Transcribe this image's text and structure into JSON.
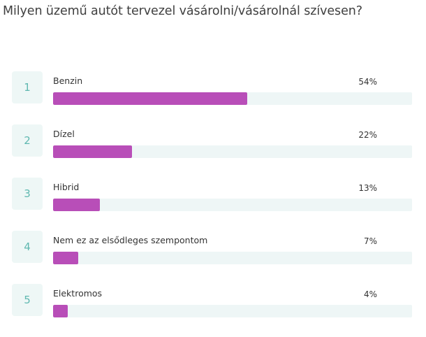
{
  "survey": {
    "question": "Milyen üzemű autót tervezel vásárolni/vásárolnál szívesen?"
  },
  "colors": {
    "bar": "#b84eb8",
    "track": "#eef6f6",
    "rank_bg": "#eef7f6",
    "rank_text": "#5fb8b0"
  },
  "chart_data": {
    "type": "bar",
    "orientation": "horizontal",
    "title": "Milyen üzemű autót tervezel vásárolni/vásárolnál szívesen?",
    "categories": [
      "Benzin",
      "Dízel",
      "Hibrid",
      "Nem ez az elsődleges szempontom",
      "Elektromos"
    ],
    "ranks": [
      "1",
      "2",
      "3",
      "4",
      "5"
    ],
    "values": [
      54,
      22,
      13,
      7,
      4
    ],
    "value_labels": [
      "54%",
      "22%",
      "13%",
      "7%",
      "4%"
    ],
    "unit": "%",
    "xlim": [
      0,
      100
    ],
    "grid": false
  }
}
